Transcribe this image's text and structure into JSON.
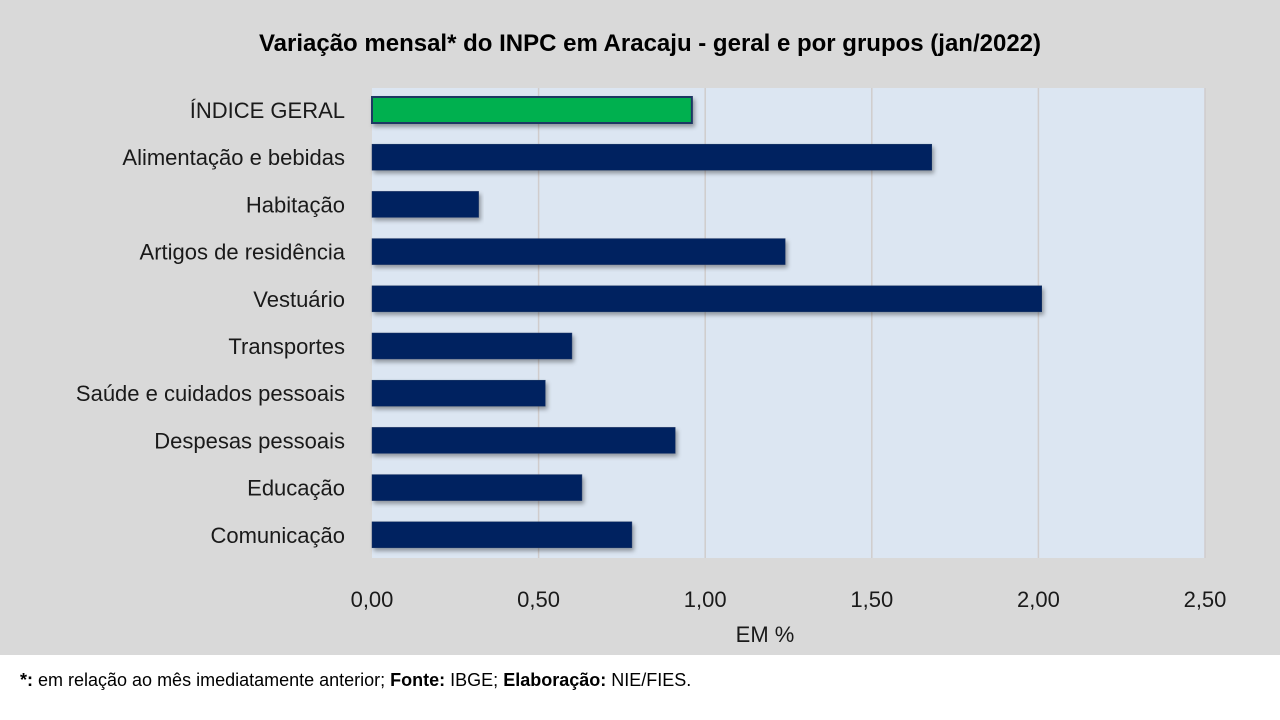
{
  "chart_data": {
    "type": "bar",
    "orientation": "horizontal",
    "title": "Variação  mensal*  do INPC em Aracaju  - geral e por grupos  (jan/2022)",
    "xlabel": "EM %",
    "ylabel": "",
    "xlim": [
      0,
      2.5
    ],
    "ticks": [
      0,
      0.5,
      1.0,
      1.5,
      2.0,
      2.5
    ],
    "tick_labels": [
      "0,00",
      "0,50",
      "1,00",
      "1,50",
      "2,00",
      "2,50"
    ],
    "grid": true,
    "categories": [
      "ÍNDICE GERAL",
      "Alimentação e bebidas",
      "Habitação",
      "Artigos de residência",
      "Vestuário",
      "Transportes",
      "Saúde e cuidados pessoais",
      "Despesas pessoais",
      "Educação",
      "Comunicação"
    ],
    "values": [
      0.96,
      1.68,
      0.32,
      1.24,
      2.01,
      0.6,
      0.52,
      0.91,
      0.63,
      0.78
    ],
    "colors": {
      "highlight": "#00b050",
      "bar": "#002060",
      "plot_bg": "#dce6f2",
      "bg": "#d9d9d9"
    }
  },
  "footer": {
    "star": "*:",
    "text1": " em relação ao mês imediatamente  anterior; ",
    "fonte_label": "Fonte:",
    "fonte": " IBGE; ",
    "elab_label": "Elaboração:",
    "elab": " NIE/FIES."
  }
}
